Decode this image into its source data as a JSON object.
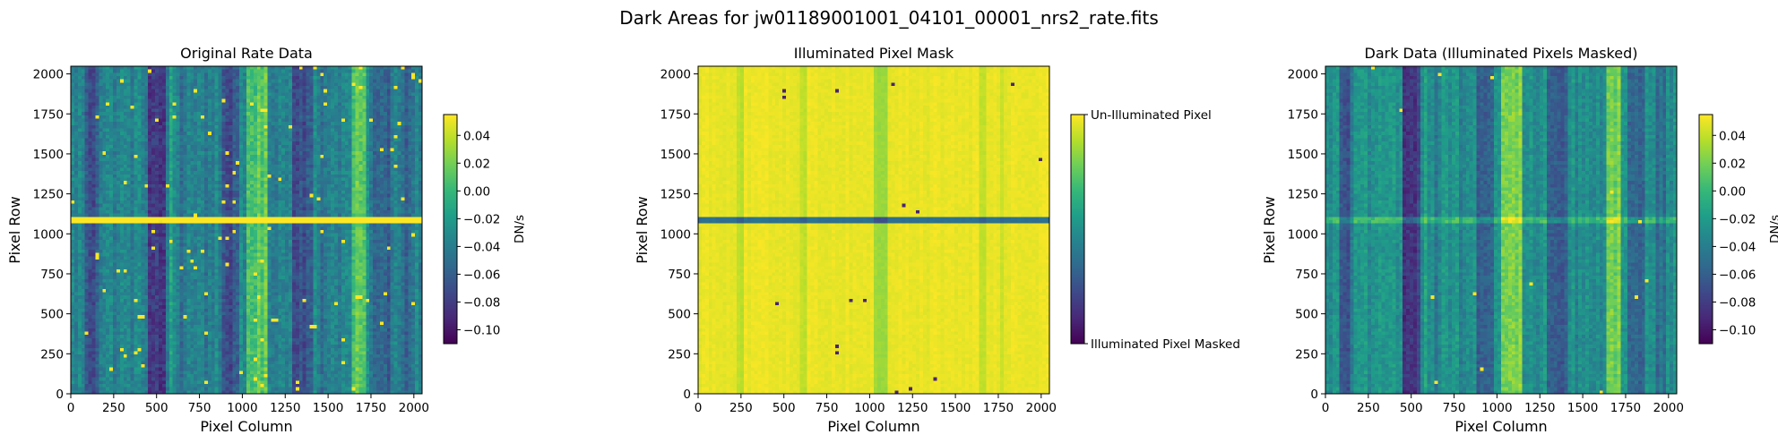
{
  "figure": {
    "suptitle": "Dark Areas for jw01189001001_04101_00001_nrs2_rate.fits"
  },
  "colormap": [
    "#440154",
    "#482878",
    "#3e4989",
    "#31688e",
    "#26828e",
    "#1f9e89",
    "#35b779",
    "#6ece58",
    "#b5de2b",
    "#fde725"
  ],
  "chart_data": [
    {
      "type": "heatmap",
      "title": "Original Rate Data",
      "xlabel": "Pixel Column",
      "ylabel": "Pixel Row",
      "xlim": [
        0,
        2048
      ],
      "ylim": [
        0,
        2048
      ],
      "xticks": [
        0,
        250,
        500,
        750,
        1000,
        1250,
        1500,
        1750,
        2000
      ],
      "yticks": [
        0,
        250,
        500,
        750,
        1000,
        1250,
        1500,
        1750,
        2000
      ],
      "colorbar": {
        "label": "DN/s",
        "range": [
          -0.11,
          0.055
        ],
        "ticks": [
          0.04,
          0.02,
          0.0,
          -0.02,
          -0.04,
          -0.06,
          -0.08,
          -0.1
        ],
        "tick_labels": [
          "0.04",
          "0.02",
          "0.00",
          "−0.02",
          "−0.04",
          "−0.06",
          "−0.08",
          "−0.10"
        ]
      },
      "pattern": {
        "base_level": 0.45,
        "noise": 0.14,
        "column_bands": [
          [
            90,
            140,
            -0.2
          ],
          [
            150,
            170,
            -0.1
          ],
          [
            460,
            560,
            -0.3
          ],
          [
            580,
            600,
            0.1
          ],
          [
            640,
            660,
            -0.1
          ],
          [
            780,
            800,
            -0.1
          ],
          [
            880,
            980,
            -0.2
          ],
          [
            1020,
            1140,
            0.28
          ],
          [
            1300,
            1420,
            -0.18
          ],
          [
            1460,
            1480,
            -0.1
          ],
          [
            1640,
            1720,
            0.28
          ],
          [
            1760,
            1860,
            -0.14
          ],
          [
            1920,
            1980,
            -0.1
          ]
        ],
        "row_bands": [
          [
            1075,
            1092,
            0.9
          ]
        ],
        "hot_pixel_density": 0.011
      }
    },
    {
      "type": "heatmap",
      "title": "Illuminated Pixel Mask",
      "xlabel": "Pixel Column",
      "ylabel": "Pixel Row",
      "xlim": [
        0,
        2048
      ],
      "ylim": [
        0,
        2048
      ],
      "xticks": [
        0,
        250,
        500,
        750,
        1000,
        1250,
        1500,
        1750,
        2000
      ],
      "yticks": [
        0,
        250,
        500,
        750,
        1000,
        1250,
        1500,
        1750,
        2000
      ],
      "colorbar": {
        "label": "",
        "range": [
          0,
          1
        ],
        "ticks": [
          1,
          0
        ],
        "tick_labels": [
          "Un-Illuminated Pixel",
          "Illuminated Pixel Masked"
        ]
      },
      "pattern": {
        "base_level": 0.97,
        "noise": 0.03,
        "column_bands": [
          [
            220,
            260,
            -0.07
          ],
          [
            600,
            640,
            -0.06
          ],
          [
            1020,
            1110,
            -0.12
          ],
          [
            1640,
            1680,
            -0.06
          ],
          [
            1760,
            1790,
            -0.05
          ]
        ],
        "row_bands": [
          [
            1082,
            1096,
            -0.6
          ]
        ],
        "hot_pixel_density": 0.0015
      }
    },
    {
      "type": "heatmap",
      "title": "Dark Data (Illuminated Pixels Masked)",
      "xlabel": "Pixel Column",
      "ylabel": "Pixel Row",
      "xlim": [
        0,
        2048
      ],
      "ylim": [
        0,
        2048
      ],
      "xticks": [
        0,
        250,
        500,
        750,
        1000,
        1250,
        1500,
        1750,
        2000
      ],
      "yticks": [
        0,
        250,
        500,
        750,
        1000,
        1250,
        1500,
        1750,
        2000
      ],
      "colorbar": {
        "label": "DN/s",
        "range": [
          -0.11,
          0.055
        ],
        "ticks": [
          0.04,
          0.02,
          0.0,
          -0.02,
          -0.04,
          -0.06,
          -0.08,
          -0.1
        ],
        "tick_labels": [
          "0.04",
          "0.02",
          "0.00",
          "−0.02",
          "−0.04",
          "−0.06",
          "−0.08",
          "−0.10"
        ]
      },
      "pattern": {
        "base_level": 0.5,
        "noise": 0.12,
        "column_bands": [
          [
            90,
            140,
            -0.22
          ],
          [
            150,
            170,
            -0.12
          ],
          [
            460,
            560,
            -0.32
          ],
          [
            580,
            600,
            0.1
          ],
          [
            640,
            660,
            -0.12
          ],
          [
            780,
            800,
            -0.12
          ],
          [
            880,
            980,
            -0.22
          ],
          [
            1020,
            1140,
            0.3
          ],
          [
            1300,
            1420,
            -0.2
          ],
          [
            1460,
            1480,
            -0.12
          ],
          [
            1640,
            1720,
            0.28
          ],
          [
            1760,
            1860,
            -0.16
          ],
          [
            1920,
            1980,
            -0.12
          ]
        ],
        "row_bands": [
          [
            1080,
            1092,
            0.18
          ]
        ],
        "hot_pixel_density": 0.0012
      }
    }
  ]
}
